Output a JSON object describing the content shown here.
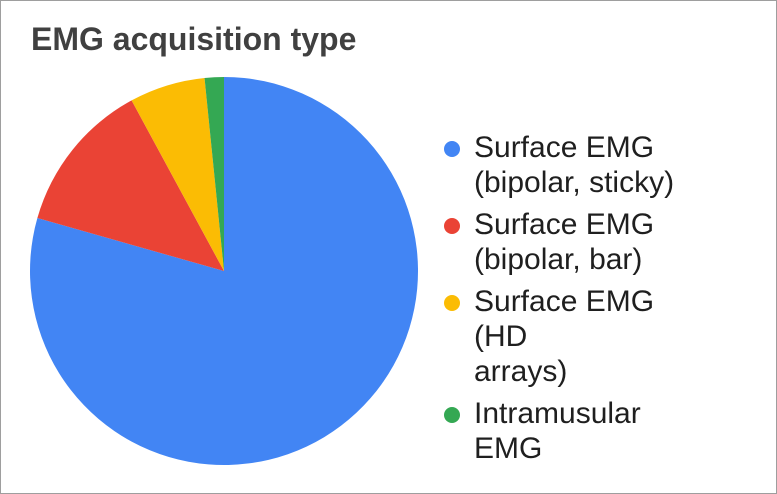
{
  "chart_data": {
    "type": "pie",
    "title": "EMG acquisition type",
    "labels": [
      "Surface EMG (bipolar, sticky)",
      "Surface EMG (bipolar, bar)",
      "Surface EMG (HD arrays)",
      "Intramusular EMG"
    ],
    "values_pct": [
      79.4,
      12.7,
      6.3,
      1.6
    ],
    "colors": [
      "#4285F4",
      "#EA4335",
      "#FBBC04",
      "#34A853"
    ],
    "start_angle_deg": 0,
    "direction": "clockwise",
    "legend_position": "right",
    "grid": false
  },
  "legend": {
    "items": [
      {
        "label": "Surface EMG (bipolar, sticky)",
        "lines": [
          "Surface EMG",
          "(bipolar, sticky)"
        ],
        "color": "#4285F4"
      },
      {
        "label": "Surface EMG (bipolar, bar)",
        "lines": [
          "Surface EMG",
          "(bipolar, bar)"
        ],
        "color": "#EA4335"
      },
      {
        "label": "Surface EMG (HD arrays)",
        "lines": [
          "Surface EMG (HD",
          "arrays)"
        ],
        "color": "#FBBC04"
      },
      {
        "label": "Intramusular EMG",
        "lines": [
          "Intramusular EMG"
        ],
        "color": "#34A853"
      }
    ]
  },
  "styles": {
    "frame_border_color": "#9e9e9e",
    "title_color": "#404040",
    "legend_text_color": "#1f1f1f",
    "background": "#ffffff"
  }
}
